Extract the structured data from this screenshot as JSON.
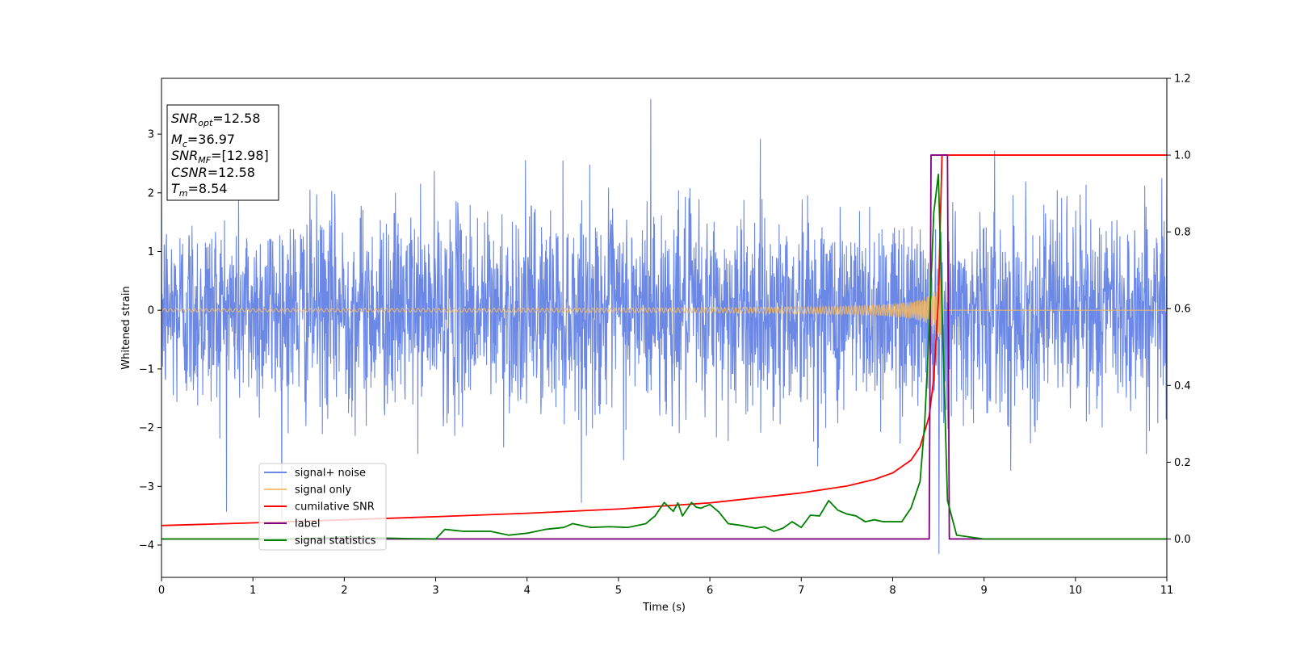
{
  "chart_data": {
    "type": "line",
    "title": "",
    "xlabel": "Time (s)",
    "ylabel": "Whitened strain",
    "y2label": "",
    "xlim": [
      0,
      11
    ],
    "ylim": [
      -4.55,
      3.95
    ],
    "y2lim": [
      -0.1,
      1.2
    ],
    "x_ticks": [
      0,
      1,
      2,
      3,
      4,
      5,
      6,
      7,
      8,
      9,
      10,
      11
    ],
    "y_ticks": [
      -4,
      -3,
      -2,
      -1,
      0,
      1,
      2,
      3
    ],
    "y2_ticks": [
      0.0,
      0.2,
      0.4,
      0.6,
      0.8,
      1.0,
      1.2
    ],
    "y2_tick_labels": [
      "0.0",
      "0.2",
      "0.4",
      "0.6",
      "0.8",
      "1.0",
      "1.2"
    ],
    "grid": false,
    "legend_position": "lower-left",
    "series": [
      {
        "name": "signal+ noise",
        "axis": "left",
        "color": "#6b88e6",
        "kind": "noise",
        "sigma": 0.85,
        "x_range": [
          0,
          11
        ],
        "approx_extremes": {
          "max": 3.6,
          "min": -4.15
        }
      },
      {
        "name": "signal only",
        "axis": "left",
        "color": "#f5b95f",
        "kind": "chirp",
        "x_range": [
          0,
          11
        ],
        "merger_time": 8.54,
        "amplitude_far": 0.02,
        "amplitude_peak": 0.75
      },
      {
        "name": "cumilative SNR",
        "axis": "right",
        "color": "#ff0000",
        "x": [
          0,
          1,
          2,
          3,
          4,
          5,
          6,
          7,
          7.5,
          7.8,
          8.0,
          8.2,
          8.3,
          8.4,
          8.45,
          8.5,
          8.54,
          11
        ],
        "y": [
          0.035,
          0.042,
          0.05,
          0.058,
          0.067,
          0.078,
          0.094,
          0.12,
          0.138,
          0.155,
          0.172,
          0.205,
          0.24,
          0.32,
          0.42,
          0.62,
          1.0,
          1.0
        ]
      },
      {
        "name": "label",
        "axis": "right",
        "color": "#800080",
        "x": [
          0,
          8.4,
          8.42,
          8.6,
          8.62,
          11
        ],
        "y": [
          0,
          0,
          1.0,
          1.0,
          0,
          0
        ]
      },
      {
        "name": "signal statistics",
        "axis": "right",
        "color": "#008000",
        "x": [
          0,
          0.5,
          1,
          1.5,
          2,
          2.3,
          2.5,
          2.7,
          3,
          3.1,
          3.3,
          3.6,
          3.8,
          4,
          4.2,
          4.4,
          4.5,
          4.7,
          4.9,
          5.1,
          5.3,
          5.4,
          5.5,
          5.6,
          5.65,
          5.7,
          5.8,
          5.85,
          5.9,
          6,
          6.1,
          6.2,
          6.35,
          6.5,
          6.6,
          6.7,
          6.8,
          6.9,
          7,
          7.1,
          7.2,
          7.3,
          7.4,
          7.5,
          7.6,
          7.7,
          7.8,
          7.9,
          8,
          8.1,
          8.2,
          8.3,
          8.35,
          8.4,
          8.45,
          8.5,
          8.55,
          8.6,
          8.7,
          9,
          10,
          11
        ],
        "y": [
          0,
          0.0,
          0.0,
          0.0,
          0.005,
          0.003,
          0.002,
          0.001,
          0.0,
          0.025,
          0.02,
          0.02,
          0.01,
          0.015,
          0.025,
          0.03,
          0.04,
          0.03,
          0.032,
          0.03,
          0.04,
          0.06,
          0.095,
          0.072,
          0.094,
          0.06,
          0.095,
          0.083,
          0.08,
          0.09,
          0.07,
          0.04,
          0.035,
          0.028,
          0.032,
          0.02,
          0.028,
          0.045,
          0.03,
          0.062,
          0.06,
          0.1,
          0.075,
          0.065,
          0.06,
          0.045,
          0.05,
          0.045,
          0.045,
          0.045,
          0.08,
          0.15,
          0.3,
          0.55,
          0.85,
          0.95,
          0.52,
          0.1,
          0.01,
          0.0,
          0.0,
          0.0
        ]
      }
    ],
    "annotation_lines": [
      {
        "label": "SNR",
        "sub": "opt",
        "value": "=12.58"
      },
      {
        "label": "M",
        "sub": "c",
        "value": "=36.97"
      },
      {
        "label": "SNR",
        "sub": "MF",
        "value": "=[12.98]"
      },
      {
        "label": "CSNR",
        "sub": "",
        "value": "=12.58"
      },
      {
        "label": "T",
        "sub": "m",
        "value": "=8.54"
      }
    ]
  }
}
